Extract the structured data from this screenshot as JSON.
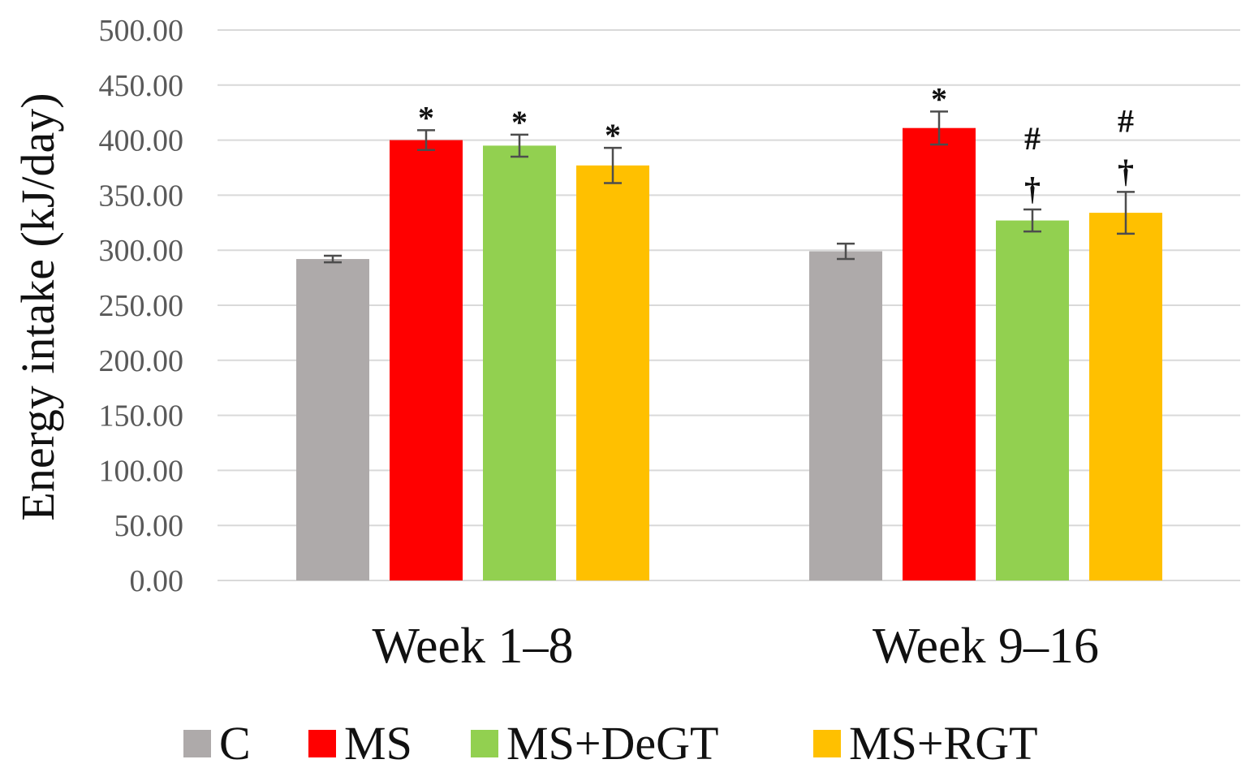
{
  "chart_data": {
    "type": "bar",
    "title": "",
    "xlabel": "",
    "ylabel": "Energy intake (kJ/day)",
    "ylim": [
      0,
      500
    ],
    "yticks": [
      "0.00",
      "50.00",
      "100.00",
      "150.00",
      "200.00",
      "250.00",
      "300.00",
      "350.00",
      "400.00",
      "450.00",
      "500.00"
    ],
    "grid": true,
    "legend_position": "bottom",
    "categories": [
      "Week 1–8",
      "Week 9–16"
    ],
    "series": [
      {
        "name": "C",
        "color": "#aeaaaa",
        "values": [
          292,
          299
        ],
        "errors": [
          3,
          7
        ],
        "annotations": [
          [],
          []
        ]
      },
      {
        "name": "MS",
        "color": "#ff0000",
        "values": [
          400,
          411
        ],
        "errors": [
          9,
          15
        ],
        "annotations": [
          [
            "*"
          ],
          [
            "*"
          ]
        ]
      },
      {
        "name": "MS+DeGT",
        "color": "#92d050",
        "values": [
          395,
          327
        ],
        "errors": [
          10,
          10
        ],
        "annotations": [
          [
            "*"
          ],
          [
            "†",
            "#"
          ]
        ]
      },
      {
        "name": "MS+RGT",
        "color": "#ffc000",
        "values": [
          377,
          334
        ],
        "errors": [
          16,
          19
        ],
        "annotations": [
          [
            "*"
          ],
          [
            "†",
            "#"
          ]
        ]
      }
    ]
  }
}
